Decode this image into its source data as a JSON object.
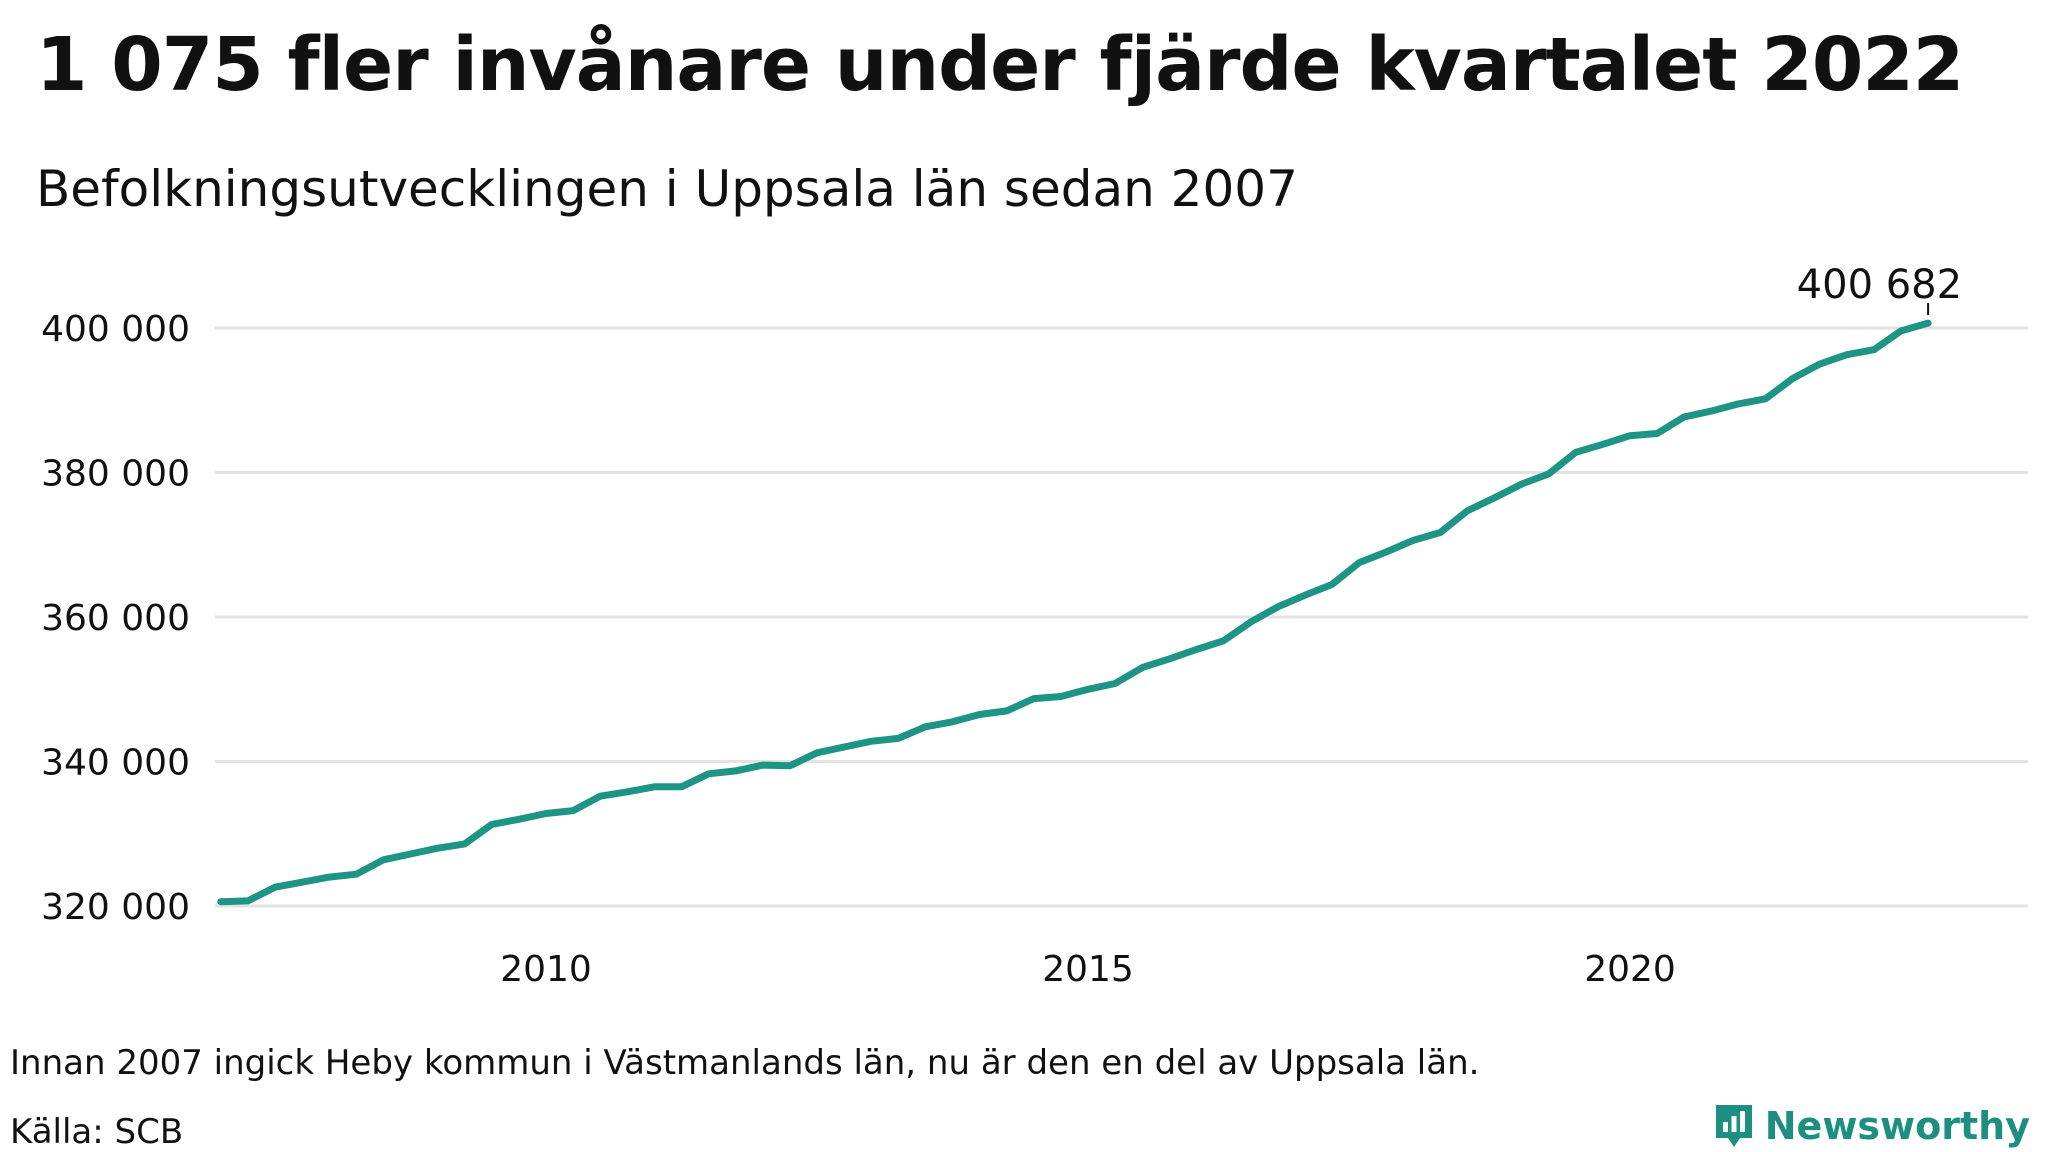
{
  "header": {
    "title": "1 075 fler invånare under fjärde kvartalet 2022",
    "subtitle": "Befolkningsutvecklingen i Uppsala län sedan 2007"
  },
  "footer": {
    "note": "Innan 2007 ingick Heby kommun i Västmanlands län, nu är den en del av Uppsala län.",
    "source": "Källa: SCB",
    "brand": "Newsworthy"
  },
  "colors": {
    "line": "#1d9484",
    "grid": "#e2e2e2",
    "brand": "#1d8f80"
  },
  "chart_data": {
    "type": "line",
    "title": "1 075 fler invånare under fjärde kvartalet 2022",
    "subtitle": "Befolkningsutvecklingen i Uppsala län sedan 2007",
    "xlabel": "",
    "ylabel": "",
    "x_unit": "year",
    "xlim": [
      2007.0,
      2023.0
    ],
    "ylim": [
      316000,
      405000
    ],
    "x_ticks": [
      2010,
      2015,
      2020
    ],
    "x_tick_labels": [
      "2010",
      "2015",
      "2020"
    ],
    "y_ticks": [
      320000,
      340000,
      360000,
      380000,
      400000
    ],
    "y_tick_labels": [
      "320 000",
      "340 000",
      "360 000",
      "380 000",
      "400 000"
    ],
    "grid": true,
    "end_label": "400 682",
    "series": [
      {
        "x": [
          2007.0,
          2007.25,
          2007.5,
          2007.75,
          2008.0,
          2008.25,
          2008.5,
          2008.75,
          2009.0,
          2009.25,
          2009.5,
          2009.75,
          2010.0,
          2010.25,
          2010.5,
          2010.75,
          2011.0,
          2011.25,
          2011.5,
          2011.75,
          2012.0,
          2012.25,
          2012.5,
          2012.75,
          2013.0,
          2013.25,
          2013.5,
          2013.75,
          2014.0,
          2014.25,
          2014.5,
          2014.75,
          2015.0,
          2015.25,
          2015.5,
          2015.75,
          2016.0,
          2016.25,
          2016.5,
          2016.75,
          2017.0,
          2017.25,
          2017.5,
          2017.75,
          2018.0,
          2018.25,
          2018.5,
          2018.75,
          2019.0,
          2019.25,
          2019.5,
          2019.75,
          2020.0,
          2020.25,
          2020.5,
          2020.75,
          2021.0,
          2021.25,
          2021.5,
          2021.75,
          2022.0,
          2022.25,
          2022.5,
          2022.75
        ],
        "values": [
          320600,
          320700,
          322600,
          323300,
          324000,
          324400,
          326400,
          327200,
          328000,
          328600,
          331300,
          332000,
          332800,
          333200,
          335200,
          335800,
          336500,
          336500,
          338300,
          338700,
          339500,
          339400,
          341200,
          342000,
          342800,
          343200,
          344800,
          345500,
          346500,
          347000,
          348700,
          349000,
          350000,
          350800,
          353000,
          354200,
          355500,
          356700,
          359300,
          361400,
          363000,
          364500,
          367500,
          369000,
          370600,
          371700,
          374700,
          376500,
          378400,
          379800,
          382800,
          383900,
          385100,
          385400,
          387700,
          388500,
          389500,
          390200,
          393000,
          395000,
          396300,
          397000,
          399600,
          400682
        ]
      }
    ]
  }
}
